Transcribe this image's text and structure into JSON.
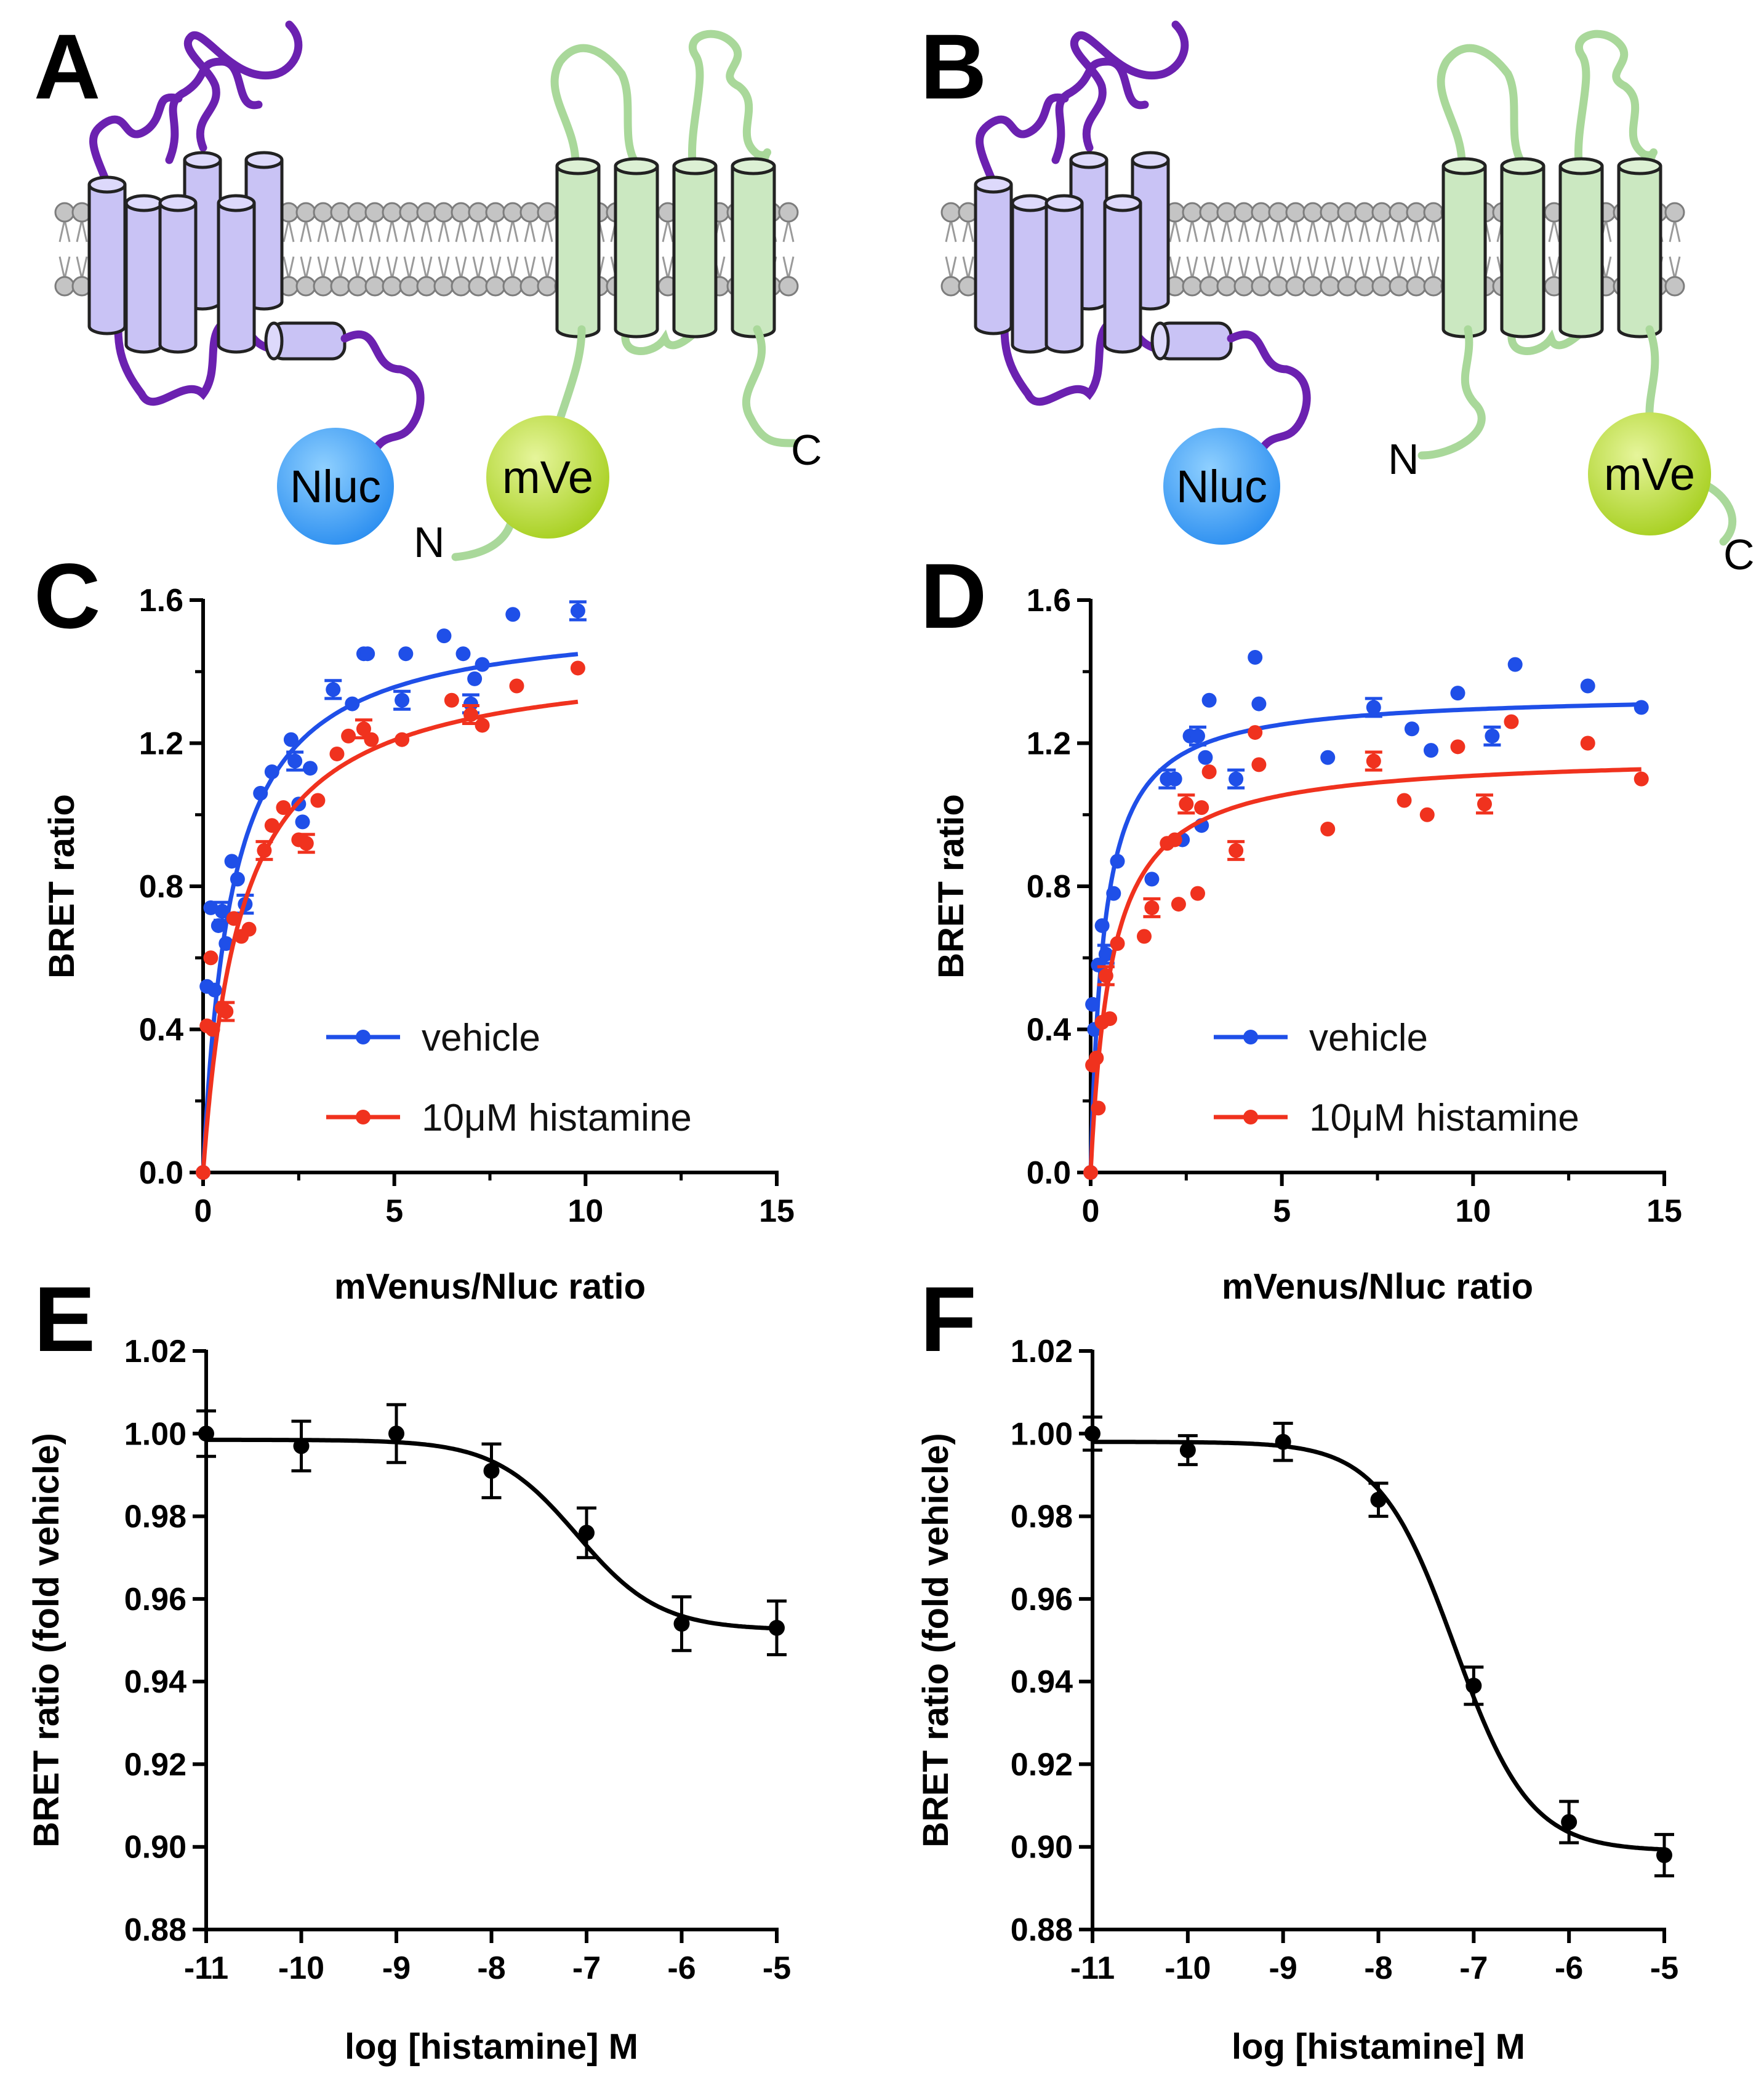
{
  "colors": {
    "vehicle": "#1f4fe8",
    "histamine": "#f0321e",
    "fit_black": "#000000",
    "receptor_purple": "#6b21b0",
    "receptor_fill": "#c9c3f5",
    "partner_green": "#a9d89a",
    "partner_fill": "#cbe8c1",
    "membrane": "#9a9a9a",
    "nluc": "#2b8ef0",
    "mve": "#a6cf1e"
  },
  "panels": {
    "A": {
      "letter": "A",
      "donor_label": "Nluc",
      "acceptor_label": "mVe",
      "acceptor_terminus": "N",
      "free_terminus": "C",
      "donor_icon": "nluc-sphere-icon",
      "acceptor_icon": "mvenus-sphere-icon"
    },
    "B": {
      "letter": "B",
      "donor_label": "Nluc",
      "acceptor_label": "mVe",
      "acceptor_terminus": "C",
      "free_terminus": "N",
      "donor_icon": "nluc-sphere-icon",
      "acceptor_icon": "mvenus-sphere-icon"
    },
    "C": {
      "letter": "C"
    },
    "D": {
      "letter": "D"
    },
    "E": {
      "letter": "E"
    },
    "F": {
      "letter": "F"
    }
  },
  "chart_data": [
    {
      "id": "C",
      "type": "scatter",
      "title": "",
      "xlabel": "mVenus/Nluc ratio",
      "ylabel": "BRET ratio",
      "xlim": [
        0,
        15
      ],
      "ylim": [
        0,
        1.6
      ],
      "xticks": [
        "0",
        "5",
        "10",
        "15"
      ],
      "yticks": [
        "0.0",
        "0.4",
        "0.8",
        "1.2",
        "1.6"
      ],
      "legend": [
        "vehicle",
        "10μM histamine"
      ],
      "legend_position": "bottom-right",
      "series": [
        {
          "name": "vehicle",
          "color": "#1f4fe8",
          "fit": {
            "bmax": 1.56,
            "kd": 0.75
          },
          "points": [
            [
              0,
              0
            ],
            [
              0.1,
              0.52
            ],
            [
              0.2,
              0.74
            ],
            [
              0.3,
              0.51
            ],
            [
              0.4,
              0.69
            ],
            [
              0.5,
              0.73
            ],
            [
              0.6,
              0.64
            ],
            [
              0.75,
              0.87
            ],
            [
              0.9,
              0.82
            ],
            [
              1.1,
              0.75
            ],
            [
              1.5,
              1.06
            ],
            [
              1.8,
              1.12
            ],
            [
              2.3,
              1.21
            ],
            [
              2.4,
              1.15
            ],
            [
              2.5,
              1.03
            ],
            [
              2.6,
              0.98
            ],
            [
              2.8,
              1.13
            ],
            [
              3.4,
              1.35
            ],
            [
              3.9,
              1.31
            ],
            [
              4.2,
              1.45
            ],
            [
              4.3,
              1.45
            ],
            [
              5.2,
              1.32
            ],
            [
              5.3,
              1.45
            ],
            [
              6.3,
              1.5
            ],
            [
              6.8,
              1.45
            ],
            [
              7.0,
              1.31
            ],
            [
              7.3,
              1.42
            ],
            [
              7.1,
              1.38
            ],
            [
              8.1,
              1.56
            ],
            [
              9.8,
              1.57
            ]
          ]
        },
        {
          "name": "10μM histamine",
          "color": "#f0321e",
          "fit": {
            "bmax": 1.45,
            "kd": 1.0
          },
          "points": [
            [
              0,
              0
            ],
            [
              0.1,
              0.41
            ],
            [
              0.2,
              0.6
            ],
            [
              0.25,
              0.4
            ],
            [
              0.5,
              0.46
            ],
            [
              0.6,
              0.45
            ],
            [
              0.8,
              0.71
            ],
            [
              1.0,
              0.66
            ],
            [
              1.2,
              0.68
            ],
            [
              1.6,
              0.9
            ],
            [
              1.8,
              0.97
            ],
            [
              2.1,
              1.02
            ],
            [
              2.5,
              0.93
            ],
            [
              2.7,
              0.92
            ],
            [
              3.0,
              1.04
            ],
            [
              3.5,
              1.17
            ],
            [
              3.8,
              1.22
            ],
            [
              4.2,
              1.24
            ],
            [
              4.4,
              1.21
            ],
            [
              5.2,
              1.21
            ],
            [
              6.5,
              1.32
            ],
            [
              7.0,
              1.28
            ],
            [
              7.3,
              1.25
            ],
            [
              8.2,
              1.36
            ],
            [
              9.8,
              1.41
            ]
          ]
        }
      ]
    },
    {
      "id": "D",
      "type": "scatter",
      "title": "",
      "xlabel": "mVenus/Nluc ratio",
      "ylabel": "BRET ratio",
      "xlim": [
        0,
        15
      ],
      "ylim": [
        0,
        1.6
      ],
      "xticks": [
        "0",
        "5",
        "10",
        "15"
      ],
      "yticks": [
        "0.0",
        "0.4",
        "0.8",
        "1.2",
        "1.6"
      ],
      "legend": [
        "vehicle",
        "10μM histamine"
      ],
      "legend_position": "bottom-right",
      "series": [
        {
          "name": "vehicle",
          "color": "#1f4fe8",
          "fit": {
            "bmax": 1.34,
            "kd": 0.35
          },
          "points": [
            [
              0,
              0
            ],
            [
              0.05,
              0.47
            ],
            [
              0.1,
              0.4
            ],
            [
              0.2,
              0.58
            ],
            [
              0.3,
              0.69
            ],
            [
              0.4,
              0.61
            ],
            [
              0.6,
              0.78
            ],
            [
              0.7,
              0.87
            ],
            [
              1.6,
              0.82
            ],
            [
              2.0,
              1.1
            ],
            [
              2.2,
              1.1
            ],
            [
              2.4,
              0.93
            ],
            [
              2.6,
              1.22
            ],
            [
              2.8,
              1.22
            ],
            [
              2.9,
              0.97
            ],
            [
              3.0,
              1.16
            ],
            [
              3.1,
              1.32
            ],
            [
              3.8,
              1.1
            ],
            [
              4.3,
              1.44
            ],
            [
              4.4,
              1.31
            ],
            [
              6.2,
              1.16
            ],
            [
              7.4,
              1.3
            ],
            [
              8.4,
              1.24
            ],
            [
              8.9,
              1.18
            ],
            [
              9.6,
              1.34
            ],
            [
              10.5,
              1.22
            ],
            [
              11.1,
              1.42
            ],
            [
              13.0,
              1.36
            ],
            [
              14.4,
              1.3
            ]
          ]
        },
        {
          "name": "10μM histamine",
          "color": "#f0321e",
          "fit": {
            "bmax": 1.17,
            "kd": 0.55
          },
          "points": [
            [
              0,
              0
            ],
            [
              0.05,
              0.3
            ],
            [
              0.15,
              0.32
            ],
            [
              0.2,
              0.18
            ],
            [
              0.3,
              0.42
            ],
            [
              0.4,
              0.55
            ],
            [
              0.5,
              0.43
            ],
            [
              0.7,
              0.64
            ],
            [
              1.4,
              0.66
            ],
            [
              1.6,
              0.74
            ],
            [
              2.0,
              0.92
            ],
            [
              2.2,
              0.93
            ],
            [
              2.3,
              0.75
            ],
            [
              2.5,
              1.03
            ],
            [
              2.8,
              0.78
            ],
            [
              2.9,
              1.02
            ],
            [
              3.1,
              1.12
            ],
            [
              3.8,
              0.9
            ],
            [
              4.3,
              1.23
            ],
            [
              4.4,
              1.14
            ],
            [
              6.2,
              0.96
            ],
            [
              7.4,
              1.15
            ],
            [
              8.2,
              1.04
            ],
            [
              8.8,
              1.0
            ],
            [
              9.6,
              1.19
            ],
            [
              10.3,
              1.03
            ],
            [
              11.0,
              1.26
            ],
            [
              13.0,
              1.2
            ],
            [
              14.4,
              1.1
            ]
          ]
        }
      ]
    },
    {
      "id": "E",
      "type": "scatter",
      "title": "",
      "xlabel": "log [histamine] M",
      "ylabel": "BRET ratio (fold vehicle)",
      "xlim": [
        -11,
        -5
      ],
      "ylim": [
        0.88,
        1.02
      ],
      "xticks": [
        "-11",
        "-10",
        "-9",
        "-8",
        "-7",
        "-6",
        "-5"
      ],
      "yticks": [
        "0.88",
        "0.90",
        "0.92",
        "0.94",
        "0.96",
        "0.98",
        "1.00",
        "1.02"
      ],
      "fit": {
        "top": 0.9985,
        "bottom": 0.9525,
        "logec50": -7.1,
        "hill": 1.0
      },
      "series": [
        {
          "name": "histamine",
          "color": "#000000",
          "x": [
            -11,
            -10,
            -9,
            -8,
            -7,
            -6,
            -5
          ],
          "y": [
            1.0,
            0.997,
            1.0,
            0.991,
            0.976,
            0.954,
            0.953
          ],
          "error": [
            0.0055,
            0.006,
            0.007,
            0.0065,
            0.006,
            0.0065,
            0.0065
          ]
        }
      ]
    },
    {
      "id": "F",
      "type": "scatter",
      "title": "",
      "xlabel": "log [histamine] M",
      "ylabel": "BRET ratio (fold vehicle)",
      "xlim": [
        -11,
        -5
      ],
      "ylim": [
        0.88,
        1.02
      ],
      "xticks": [
        "-11",
        "-10",
        "-9",
        "-8",
        "-7",
        "-6",
        "-5"
      ],
      "yticks": [
        "0.88",
        "0.90",
        "0.92",
        "0.94",
        "0.96",
        "0.98",
        "1.00",
        "1.02"
      ],
      "fit": {
        "top": 0.998,
        "bottom": 0.899,
        "logec50": -7.2,
        "hill": 1.1
      },
      "series": [
        {
          "name": "histamine",
          "color": "#000000",
          "x": [
            -11,
            -10,
            -9,
            -8,
            -7,
            -6,
            -5
          ],
          "y": [
            1.0,
            0.996,
            0.998,
            0.984,
            0.939,
            0.906,
            0.898
          ],
          "error": [
            0.004,
            0.0035,
            0.0045,
            0.004,
            0.0045,
            0.005,
            0.005
          ]
        }
      ]
    }
  ]
}
